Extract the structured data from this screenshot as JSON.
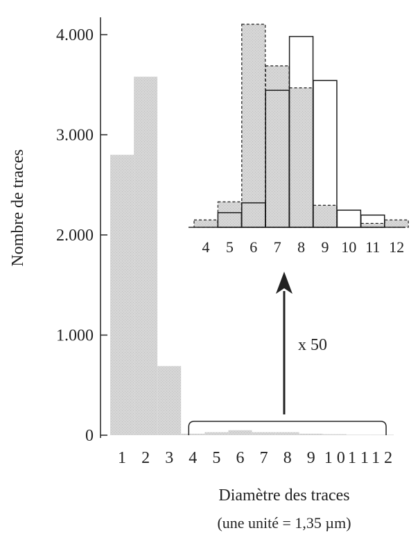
{
  "chart_data": [
    {
      "type": "bar",
      "ylabel": "Nombre de traces",
      "xlabel": "Diamètre des traces",
      "xlabel_note": "(une unité = 1,35 µm)",
      "categories": [
        "1",
        "2",
        "3",
        "4",
        "5",
        "6",
        "7",
        "8",
        "9",
        "10",
        "11",
        "12"
      ],
      "x_tick_labels": [
        "1",
        "2",
        "3",
        "4",
        "5",
        "6",
        "7",
        "8",
        "9",
        "10",
        "11",
        "12"
      ],
      "y_tick_labels": [
        "0",
        "1.000",
        "2.000",
        "3.000",
        "4.000"
      ],
      "y_ticks": [
        0,
        1000,
        2000,
        3000,
        4000
      ],
      "ylim": [
        0,
        4200
      ],
      "values": [
        2800,
        3580,
        690,
        15,
        30,
        50,
        30,
        30,
        15,
        10,
        5,
        5
      ],
      "grid": false,
      "bracket_range": [
        4,
        12
      ]
    },
    {
      "type": "bar",
      "role": "inset (x 50)",
      "annotation": "x 50",
      "categories": [
        "4",
        "5",
        "6",
        "7",
        "8",
        "9",
        "10",
        "11",
        "12"
      ],
      "x_tick_labels": [
        "4",
        "5",
        "6",
        "7",
        "8",
        "9",
        "10",
        "11",
        "12"
      ],
      "series": [
        {
          "style": "shaded-dashed",
          "values": [
            150,
            520,
            4150,
            3300,
            2850,
            450,
            0,
            80,
            150
          ]
        },
        {
          "style": "white-outline",
          "values": [
            0,
            300,
            500,
            2800,
            3900,
            3000,
            350,
            250,
            0
          ]
        }
      ],
      "grid": false
    }
  ],
  "colors": {
    "shaded_fill": "#d6d6d6",
    "outline": "#1a1a1a",
    "white_fill": "#ffffff"
  }
}
